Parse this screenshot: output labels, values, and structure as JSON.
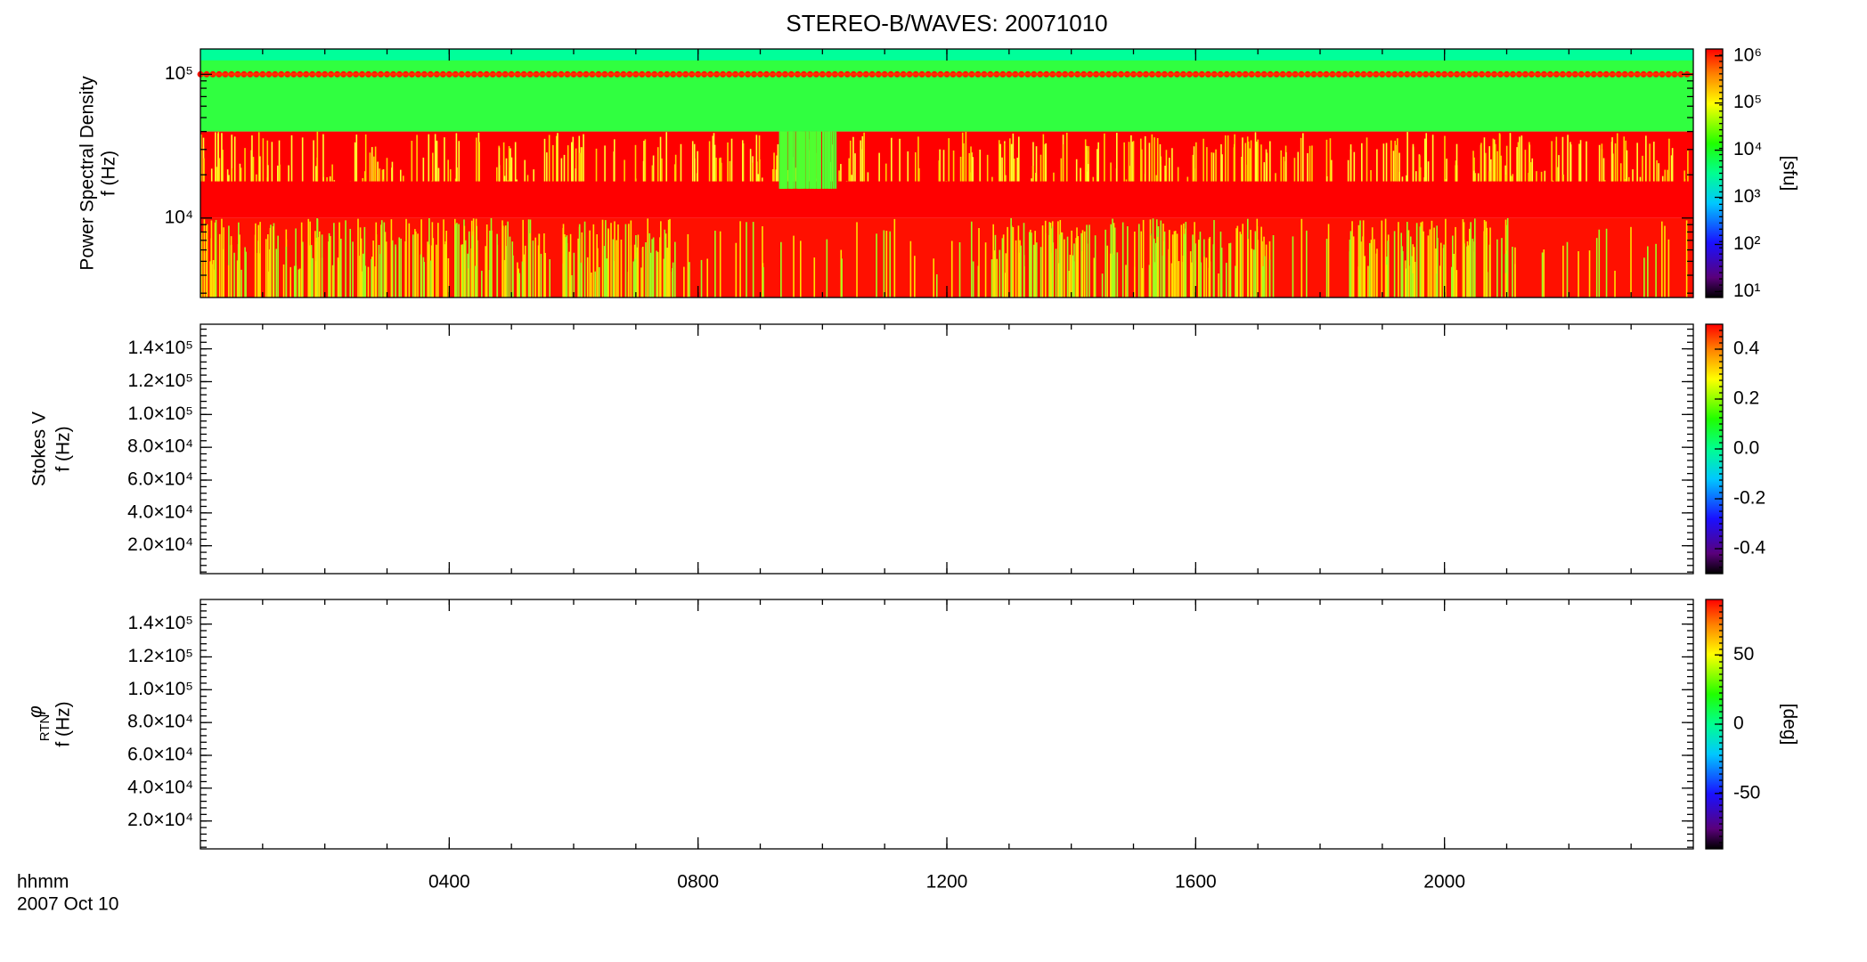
{
  "chart_data": [
    {
      "type": "spectrogram",
      "title": "STEREO-B/WAVES: 20071010",
      "ylabel": "Power Spectral Density",
      "ylabel_unit": "f (Hz)",
      "ylog": true,
      "ylim": [
        2800,
        150000
      ],
      "yticks": [
        {
          "value": 10000,
          "label": "10⁴"
        },
        {
          "value": 100000,
          "label": "10⁵"
        }
      ],
      "xlim": [
        0,
        24
      ],
      "colorbar_label": "[sfu]",
      "colorbar_log": true,
      "colorbar_lim": [
        7.5,
        1400000
      ],
      "colorbar_ticks": [
        {
          "value": 10,
          "label": "10¹"
        },
        {
          "value": 100,
          "label": "10²"
        },
        {
          "value": 1000,
          "label": "10³"
        },
        {
          "value": 10000,
          "label": "10⁴"
        },
        {
          "value": 100000,
          "label": "10⁵"
        },
        {
          "value": 1000000,
          "label": "10⁶"
        }
      ]
    },
    {
      "type": "spectrogram",
      "ylabel": "Stokes V",
      "ylabel_unit": "f (Hz)",
      "ylog": false,
      "ylim": [
        3000,
        155000
      ],
      "yticks": [
        {
          "value": 20000,
          "label": "2.0×10⁴"
        },
        {
          "value": 40000,
          "label": "4.0×10⁴"
        },
        {
          "value": 60000,
          "label": "6.0×10⁴"
        },
        {
          "value": 80000,
          "label": "8.0×10⁴"
        },
        {
          "value": 100000,
          "label": "1.0×10⁵"
        },
        {
          "value": 120000,
          "label": "1.2×10⁵"
        },
        {
          "value": 140000,
          "label": "1.4×10⁵"
        }
      ],
      "xlim": [
        0,
        24
      ],
      "colorbar_log": false,
      "colorbar_lim": [
        -0.5,
        0.5
      ],
      "colorbar_ticks": [
        -0.4,
        -0.2,
        {
          "value": 0,
          "label": "0.0"
        },
        0.2,
        0.4
      ]
    },
    {
      "type": "spectrogram",
      "ylabel": "φ",
      "ylabel_subscript": "RTN",
      "ylabel_unit": "f (Hz)",
      "ylog": false,
      "ylim": [
        3000,
        155000
      ],
      "yticks": [
        {
          "value": 20000,
          "label": "2.0×10⁴"
        },
        {
          "value": 40000,
          "label": "4.0×10⁴"
        },
        {
          "value": 60000,
          "label": "6.0×10⁴"
        },
        {
          "value": 80000,
          "label": "8.0×10⁴"
        },
        {
          "value": 100000,
          "label": "1.0×10⁵"
        },
        {
          "value": 120000,
          "label": "1.2×10⁵"
        },
        {
          "value": 140000,
          "label": "1.4×10⁵"
        }
      ],
      "xlim": [
        0,
        24
      ],
      "xticks": [
        {
          "value": 4,
          "label": "0400"
        },
        {
          "value": 8,
          "label": "0800"
        },
        {
          "value": 12,
          "label": "1200"
        },
        {
          "value": 16,
          "label": "1600"
        },
        {
          "value": 20,
          "label": "2000"
        }
      ],
      "xlabel": [
        "hhmm",
        "2007 Oct 10"
      ],
      "colorbar_label": "[deg]",
      "colorbar_log": false,
      "colorbar_lim": [
        -90,
        90
      ],
      "colorbar_ticks": [
        -50,
        0,
        50
      ]
    }
  ]
}
